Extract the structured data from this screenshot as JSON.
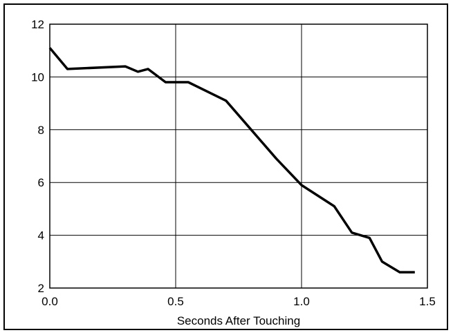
{
  "chart_data": {
    "type": "line",
    "title": "",
    "xlabel": "Seconds After Touching",
    "ylabel": "",
    "xlim": [
      0.0,
      1.5
    ],
    "ylim": [
      2,
      12
    ],
    "xticks": [
      0.0,
      0.5,
      1.0,
      1.5
    ],
    "xtick_labels": [
      "0.0",
      "0.5",
      "1.0",
      "1.5"
    ],
    "yticks": [
      2,
      4,
      6,
      8,
      10,
      12
    ],
    "ytick_labels": [
      "2",
      "4",
      "6",
      "8",
      "10",
      "12"
    ],
    "grid": true,
    "legend": "none",
    "line_color": "#000000",
    "series": [
      {
        "x": [
          0.0,
          0.07,
          0.3,
          0.35,
          0.39,
          0.46,
          0.55,
          0.7,
          0.8,
          0.9,
          1.0,
          1.13,
          1.2,
          1.27,
          1.32,
          1.39,
          1.45
        ],
        "y": [
          11.1,
          10.3,
          10.4,
          10.2,
          10.3,
          9.8,
          9.8,
          9.1,
          8.0,
          6.9,
          5.9,
          5.1,
          4.1,
          3.9,
          3.0,
          2.6,
          2.6
        ]
      }
    ]
  }
}
